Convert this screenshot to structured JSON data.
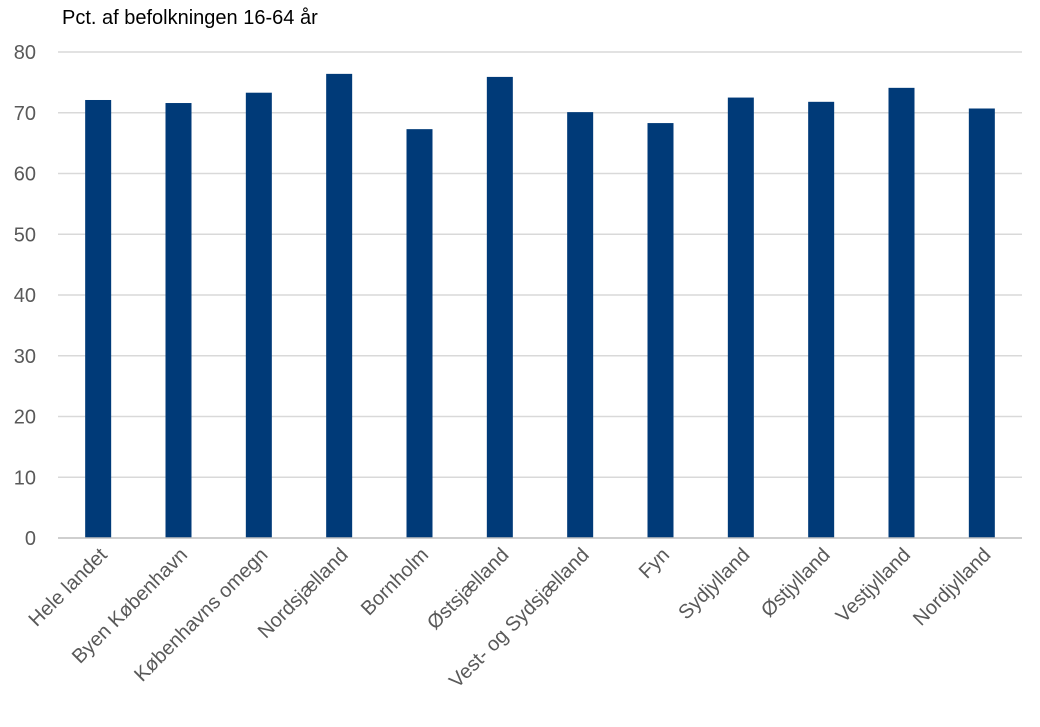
{
  "chart_data": {
    "type": "bar",
    "ylabel": "Pct. af befolkningen 16-64 år",
    "categories": [
      "Hele landet",
      "Byen København",
      "Københavns omegn",
      "Nordsjælland",
      "Bornholm",
      "Østsjælland",
      "Vest- og Sydsjælland",
      "Fyn",
      "Sydjylland",
      "Østjylland",
      "Vestjylland",
      "Nordjylland"
    ],
    "values": [
      72.1,
      71.6,
      73.3,
      76.4,
      67.3,
      75.9,
      70.1,
      68.3,
      72.5,
      71.8,
      74.1,
      70.7
    ],
    "ylim": [
      0,
      80
    ],
    "yticks": [
      0,
      10,
      20,
      30,
      40,
      50,
      60,
      70,
      80
    ],
    "grid": true,
    "legend": "none",
    "bar_color": "#003a78",
    "grid_color": "#d9d9d9",
    "axis_color": "#bfbfbf"
  }
}
